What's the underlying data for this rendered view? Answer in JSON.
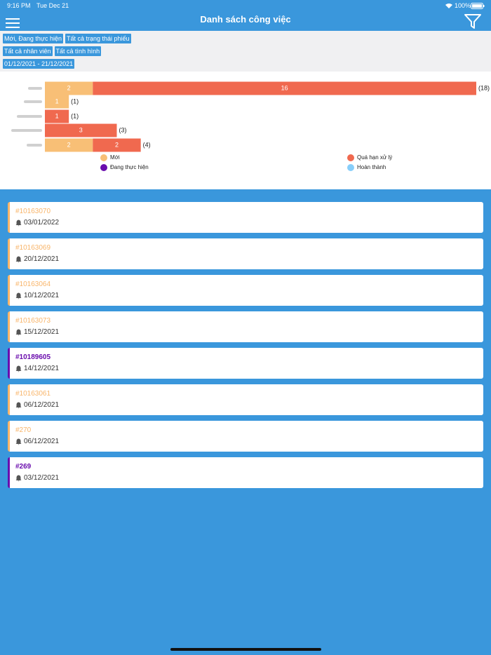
{
  "status_bar": {
    "time": "9:16 PM",
    "date": "Tue Dec 21",
    "battery": "100%"
  },
  "header": {
    "title": "Danh sách công việc"
  },
  "filters": [
    [
      "Mới, Đang thực hiện",
      "Tất cả trạng thái phiếu"
    ],
    [
      "Tất cả nhân viên",
      "Tất cả tình hình"
    ],
    [
      "01/12/2021 - 21/12/2021"
    ]
  ],
  "chart": {
    "type": "bar",
    "orientation": "horizontal",
    "stacked": true,
    "categories": [
      null,
      null,
      null,
      null,
      null
    ],
    "series": [
      {
        "name": "Mới",
        "color": "#f8bf76",
        "values": [
          2,
          1,
          null,
          null,
          2
        ]
      },
      {
        "name": "Quá hạn xử lý",
        "color": "#f0694f",
        "values": [
          16,
          null,
          1,
          3,
          2
        ]
      },
      {
        "name": "Đang thực hiện",
        "color": "#6a0dad",
        "values": [
          null,
          null,
          null,
          null,
          null
        ]
      },
      {
        "name": "Hoàn thành",
        "color": "#87cefa",
        "values": [
          null,
          null,
          null,
          null,
          null
        ]
      }
    ],
    "totals": {
      "values": [
        18,
        1,
        1,
        3,
        4
      ],
      "value_labels": [
        "(18)",
        "(1)",
        "(1)",
        "(3)",
        "(4)"
      ]
    }
  },
  "tasks": [
    {
      "id": "#10163070",
      "date": "03/01/2022",
      "color": "#f8b56a"
    },
    {
      "id": "#10163069",
      "date": "20/12/2021",
      "color": "#f8b56a"
    },
    {
      "id": "#10163064",
      "date": "10/12/2021",
      "color": "#f8b56a"
    },
    {
      "id": "#10163073",
      "date": "15/12/2021",
      "color": "#f8b56a"
    },
    {
      "id": "#10189605",
      "date": "14/12/2021",
      "color": "#6a0dad"
    },
    {
      "id": "#10163061",
      "date": "06/12/2021",
      "color": "#f8b56a"
    },
    {
      "id": "#270",
      "date": "06/12/2021",
      "color": "#f8b56a"
    },
    {
      "id": "#269",
      "date": "03/12/2021",
      "color": "#6a0dad"
    }
  ]
}
